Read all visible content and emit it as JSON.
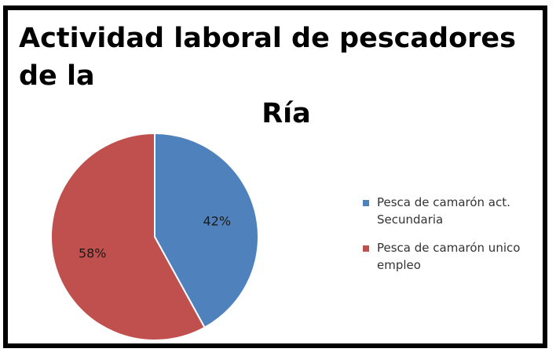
{
  "chart_data": {
    "type": "pie",
    "title_lines": [
      "Actividad laboral de pescadores de la",
      "Ría"
    ],
    "slices": [
      {
        "name": "Pesca de camarón act. Secundaria",
        "name_lines": [
          "Pesca de camarón act.",
          "Secundaria"
        ],
        "value": 42,
        "label": "42%",
        "color": "#4f81bd"
      },
      {
        "name": "Pesca de camarón unico empleo",
        "name_lines": [
          "Pesca de camarón unico",
          "empleo"
        ],
        "value": 58,
        "label": "58%",
        "color": "#c0504d"
      }
    ],
    "legend_position": "right"
  }
}
